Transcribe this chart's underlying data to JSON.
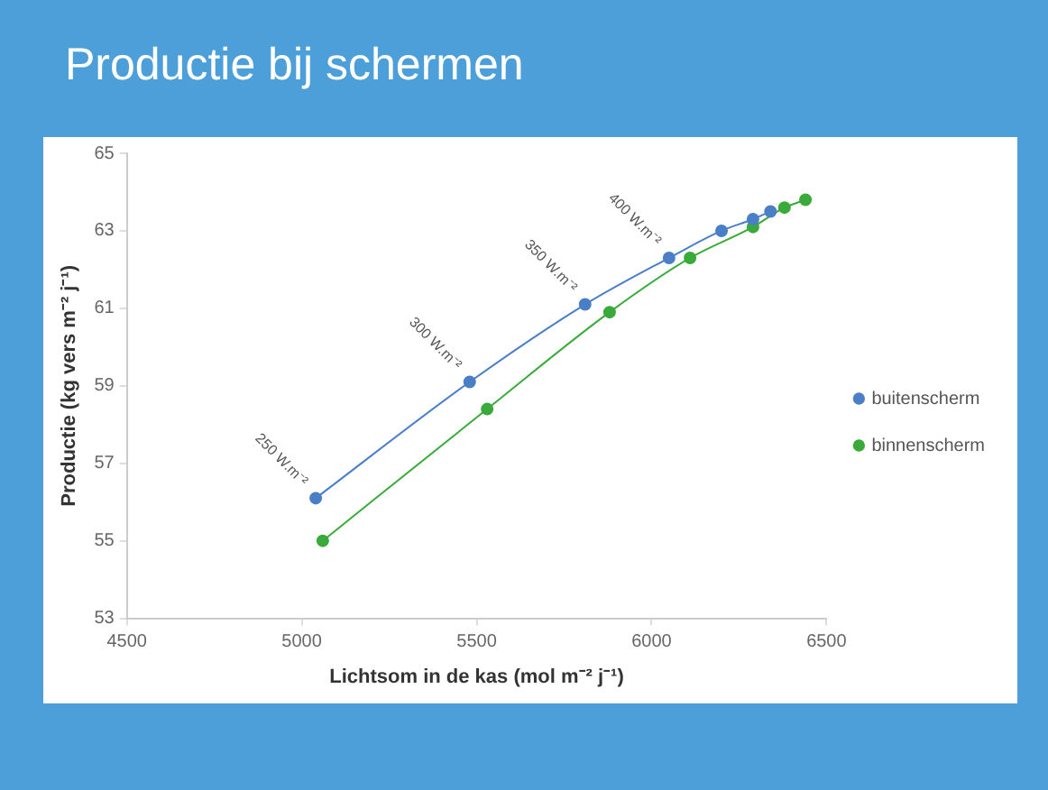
{
  "chart_data": {
    "type": "line",
    "title": "Productie bij schermen",
    "xlabel": "Lichtsom in de kas (mol m⁻² j⁻¹)",
    "ylabel": "Productie (kg vers m⁻² j⁻¹)",
    "series": [
      {
        "name": "buitenscherm",
        "color": "#4a7fc8",
        "x": [
          5040,
          5480,
          5810,
          6050,
          6200,
          6290,
          6340
        ],
        "values": [
          56.1,
          59.1,
          61.1,
          62.3,
          63.0,
          63.3,
          63.5
        ]
      },
      {
        "name": "binnenscherm",
        "color": "#3aaa3a",
        "x": [
          5060,
          5530,
          5880,
          6110,
          6290,
          6380,
          6440
        ],
        "values": [
          55.0,
          58.4,
          60.9,
          62.3,
          63.1,
          63.6,
          63.8
        ]
      }
    ],
    "xlim": [
      4500,
      6500
    ],
    "xticks": [
      4500,
      5000,
      5500,
      6000,
      6500
    ],
    "ylim": [
      53,
      65
    ],
    "yticks": [
      53,
      55,
      57,
      59,
      61,
      63,
      65
    ],
    "grid": false,
    "legend": "right",
    "marker": "circle",
    "line_style": "solid",
    "annotations": [
      {
        "text": "250 W.m⁻²",
        "x": 5040,
        "y": 56.1
      },
      {
        "text": "300 W.m⁻²",
        "x": 5480,
        "y": 59.1
      },
      {
        "text": "350 W.m⁻²",
        "x": 5810,
        "y": 61.1
      },
      {
        "text": "400 W.m⁻²",
        "x": 6050,
        "y": 62.3
      }
    ]
  }
}
